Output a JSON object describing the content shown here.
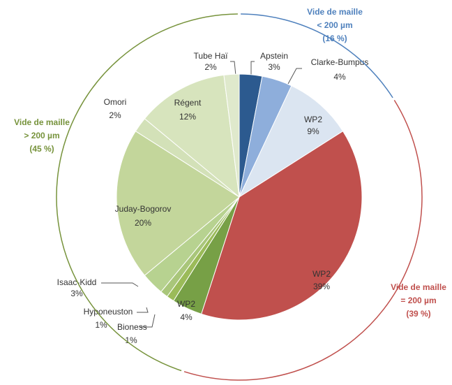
{
  "chart_data": {
    "type": "pie",
    "categories": [
      "Apstein",
      "Clarke-Bumpus",
      "WP2",
      "WP2",
      "WP2",
      "Bioness",
      "Hyponeuston",
      "Isaac-Kidd",
      "Juday-Bogorov",
      "Omori",
      "Régent",
      "Tube Haï"
    ],
    "values": [
      3,
      4,
      9,
      39,
      4,
      1,
      1,
      3,
      20,
      2,
      12,
      2
    ],
    "value_labels": [
      "3%",
      "4%",
      "9%",
      "39%",
      "4%",
      "1%",
      "1%",
      "3%",
      "20%",
      "2%",
      "12%",
      "2%"
    ],
    "colors": [
      "#2c5a8f",
      "#8eaedb",
      "#dbe5f1",
      "#c0504d",
      "#77a046",
      "#9bbb59",
      "#a9c67a",
      "#b7d290",
      "#c3d69b",
      "#d3e1b8",
      "#d7e4bd",
      "#dfe9cc"
    ],
    "groups": [
      {
        "lines": [
          "Vide de maille",
          "< 200 µm"
        ],
        "value": 16,
        "value_label": "(16 %)",
        "color": "#4f81bd"
      },
      {
        "lines": [
          "Vide de maille",
          "= 200 µm"
        ],
        "value": 39,
        "value_label": "(39 %)",
        "color": "#c0504d"
      },
      {
        "lines": [
          "Vide de maille",
          "> 200 µm"
        ],
        "value": 45,
        "value_label": "(45 %)",
        "color": "#77933c"
      }
    ]
  }
}
